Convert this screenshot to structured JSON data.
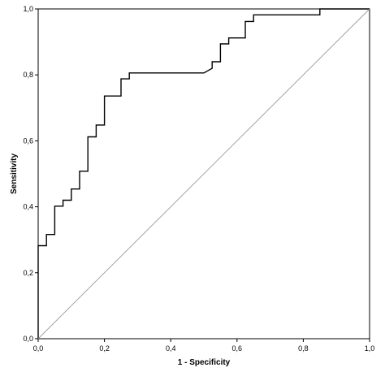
{
  "chart_data": {
    "type": "line",
    "xlabel": "1 - Specificity",
    "ylabel": "Sensitivity",
    "xlim": [
      0,
      1
    ],
    "ylim": [
      0,
      1
    ],
    "grid": false,
    "legend": "none",
    "x_ticks": [
      "0,0",
      "0,2",
      "0,4",
      "0,6",
      "0,8",
      "1,0"
    ],
    "y_ticks": [
      "0,0",
      "0,2",
      "0,4",
      "0,6",
      "0,8",
      "1,0"
    ],
    "series": [
      {
        "color": "#000000",
        "x": [
          0.0,
          0.0,
          0.025,
          0.025,
          0.05,
          0.05,
          0.075,
          0.075,
          0.1,
          0.1,
          0.125,
          0.125,
          0.15,
          0.15,
          0.175,
          0.175,
          0.2,
          0.2,
          0.25,
          0.25,
          0.275,
          0.275,
          0.5,
          0.525,
          0.525,
          0.55,
          0.55,
          0.575,
          0.575,
          0.625,
          0.625,
          0.65,
          0.65,
          0.85,
          0.85,
          1.0
        ],
        "y": [
          0.0,
          0.282,
          0.282,
          0.316,
          0.316,
          0.402,
          0.402,
          0.42,
          0.42,
          0.454,
          0.454,
          0.508,
          0.508,
          0.612,
          0.612,
          0.648,
          0.648,
          0.736,
          0.736,
          0.788,
          0.788,
          0.806,
          0.806,
          0.82,
          0.84,
          0.84,
          0.894,
          0.894,
          0.912,
          0.912,
          0.962,
          0.962,
          0.982,
          0.982,
          1.0,
          1.0
        ]
      },
      {
        "color": "#9a9a9a",
        "x": [
          0,
          1
        ],
        "y": [
          0,
          1
        ]
      }
    ]
  }
}
